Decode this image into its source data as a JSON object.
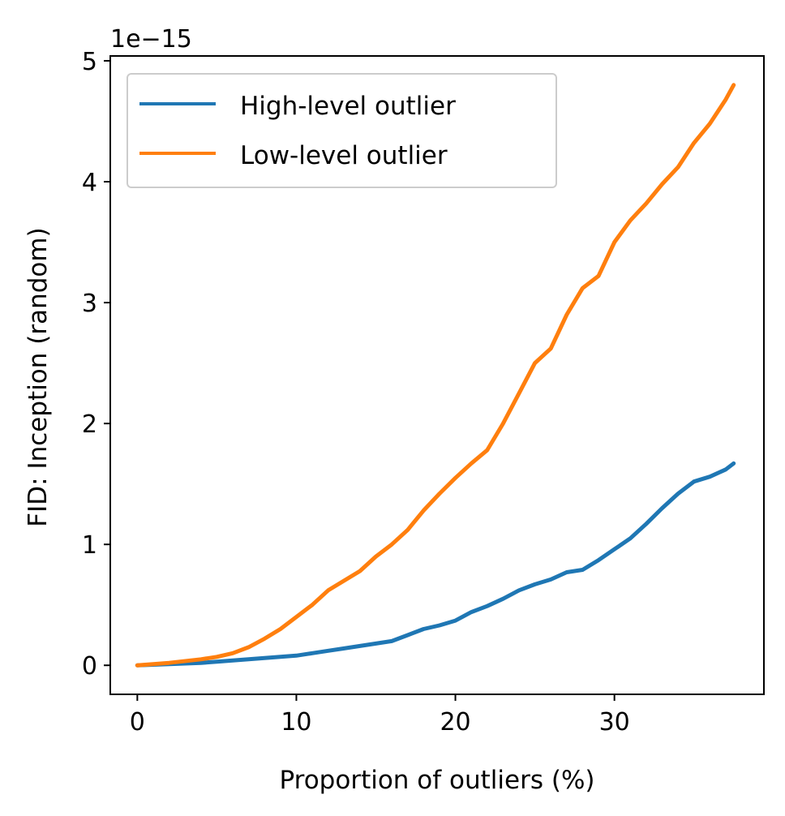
{
  "chart_data": {
    "type": "line",
    "xlabel": "Proportion of outliers (%)",
    "ylabel": "FID: Inception (random)",
    "y_offset_label": "1e−15",
    "xlim": [
      -1.7,
      39.4
    ],
    "ylim": [
      -0.24,
      5.04
    ],
    "xticks": [
      0,
      10,
      20,
      30
    ],
    "xtick_labels": [
      "0",
      "10",
      "20",
      "30"
    ],
    "yticks": [
      0,
      1,
      2,
      3,
      4,
      5
    ],
    "ytick_labels": [
      "0",
      "1",
      "2",
      "3",
      "4",
      "5"
    ],
    "grid": false,
    "legend_position": "upper-left",
    "series": [
      {
        "name": "High-level outlier",
        "color": "#1f77b4",
        "x": [
          0,
          2,
          4,
          5,
          6,
          8,
          10,
          11,
          12,
          13,
          14,
          15,
          16,
          17,
          18,
          19,
          20,
          21,
          22,
          23,
          24,
          25,
          26,
          27,
          28,
          29,
          30,
          31,
          32,
          33,
          34,
          35,
          36,
          37,
          37.5
        ],
        "y": [
          0,
          0.01,
          0.02,
          0.03,
          0.04,
          0.06,
          0.08,
          0.1,
          0.12,
          0.14,
          0.16,
          0.18,
          0.2,
          0.25,
          0.3,
          0.33,
          0.37,
          0.44,
          0.49,
          0.55,
          0.62,
          0.67,
          0.71,
          0.77,
          0.79,
          0.87,
          0.96,
          1.05,
          1.17,
          1.3,
          1.42,
          1.52,
          1.56,
          1.62,
          1.67
        ]
      },
      {
        "name": "Low-level outlier",
        "color": "#ff7f0e",
        "x": [
          0,
          2,
          4,
          5,
          6,
          7,
          8,
          9,
          10,
          11,
          12,
          13,
          14,
          15,
          16,
          17,
          18,
          19,
          20,
          21,
          22,
          23,
          24,
          25,
          26,
          27,
          28,
          29,
          30,
          31,
          32,
          33,
          34,
          35,
          36,
          37,
          37.5
        ],
        "y": [
          0,
          0.02,
          0.05,
          0.07,
          0.1,
          0.15,
          0.22,
          0.3,
          0.4,
          0.5,
          0.62,
          0.7,
          0.78,
          0.9,
          1.0,
          1.12,
          1.28,
          1.42,
          1.55,
          1.67,
          1.78,
          2.0,
          2.25,
          2.5,
          2.62,
          2.9,
          3.12,
          3.22,
          3.5,
          3.68,
          3.82,
          3.98,
          4.12,
          4.32,
          4.48,
          4.68,
          4.8
        ]
      }
    ]
  }
}
